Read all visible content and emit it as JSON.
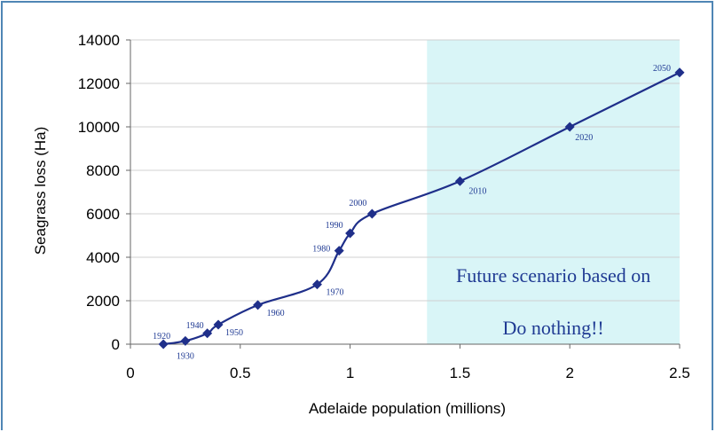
{
  "chart_data": {
    "type": "line",
    "xlabel": "Adelaide population (millions)",
    "ylabel": "Seagrass loss (Ha)",
    "xlim": [
      0,
      2.5
    ],
    "ylim": [
      0,
      14000
    ],
    "x_ticks": [
      "0",
      "0.5",
      "1",
      "1.5",
      "2",
      "2.5"
    ],
    "y_ticks": [
      "0",
      "2000",
      "4000",
      "6000",
      "8000",
      "10000",
      "12000",
      "14000"
    ],
    "series_color": "#1f2f8a",
    "shaded_region": {
      "x_start": 1.35,
      "x_end": 2.5,
      "color": "#d9f5f7",
      "text_lines": [
        "Future scenario based on",
        "Do nothing!!"
      ]
    },
    "points": [
      {
        "label": "1920",
        "x": 0.15,
        "y": 0
      },
      {
        "label": "1930",
        "x": 0.25,
        "y": 150
      },
      {
        "label": "1940",
        "x": 0.35,
        "y": 500
      },
      {
        "label": "1950",
        "x": 0.4,
        "y": 900
      },
      {
        "label": "1960",
        "x": 0.58,
        "y": 1800
      },
      {
        "label": "1970",
        "x": 0.85,
        "y": 2750
      },
      {
        "label": "1980",
        "x": 0.95,
        "y": 4300
      },
      {
        "label": "1990",
        "x": 1.0,
        "y": 5100
      },
      {
        "label": "2000",
        "x": 1.1,
        "y": 6000
      },
      {
        "label": "2010",
        "x": 1.5,
        "y": 7500
      },
      {
        "label": "2020",
        "x": 2.0,
        "y": 10000
      },
      {
        "label": "2050",
        "x": 2.5,
        "y": 12500
      }
    ]
  }
}
